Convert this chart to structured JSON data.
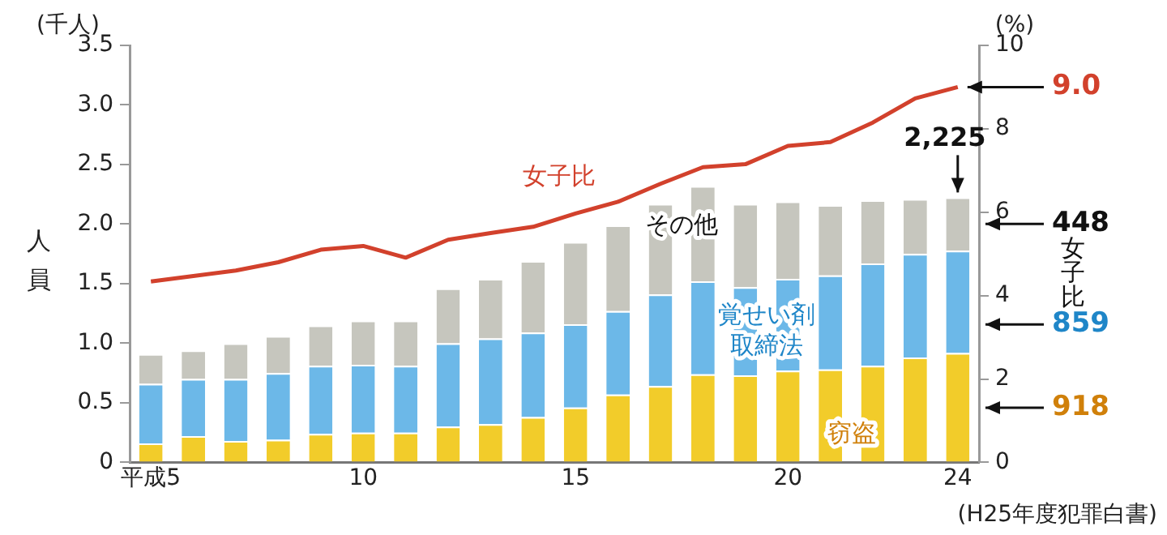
{
  "chart_data": {
    "type": "bar",
    "stacked": true,
    "ylabel": "人員",
    "y2label": "女子比",
    "annotations": [
      "(千人)",
      "(%)",
      "(H25年度犯罪白書)",
      "918",
      "859",
      "448"
    ],
    "categories": [
      "平成5",
      null,
      null,
      null,
      null,
      "10",
      null,
      null,
      null,
      null,
      "15",
      null,
      null,
      null,
      null,
      "20",
      null,
      null,
      null,
      "24"
    ],
    "series": [
      {
        "name": "窃盗",
        "color": "#f2cc2a",
        "values": [
          0.16,
          0.22,
          0.18,
          0.19,
          0.24,
          0.25,
          0.25,
          0.3,
          0.32,
          0.38,
          0.46,
          0.57,
          0.64,
          0.74,
          0.73,
          0.77,
          0.78,
          0.81,
          0.88,
          0.918
        ]
      },
      {
        "name": "覚せい剤取締法",
        "color": "#6cb8e8",
        "values": [
          0.5,
          0.48,
          0.52,
          0.56,
          0.57,
          0.57,
          0.56,
          0.7,
          0.72,
          0.71,
          0.7,
          0.7,
          0.77,
          0.78,
          0.74,
          0.77,
          0.79,
          0.86,
          0.87,
          0.859
        ]
      },
      {
        "name": "その他",
        "color": "#c6c6be",
        "values": [
          0.25,
          0.24,
          0.3,
          0.31,
          0.34,
          0.37,
          0.38,
          0.46,
          0.5,
          0.6,
          0.69,
          0.72,
          0.76,
          0.8,
          0.7,
          0.65,
          0.59,
          0.53,
          0.46,
          0.448
        ]
      },
      {
        "name": "女子比",
        "type": "line",
        "axis": "y2",
        "color": "#d2412c",
        "values": [
          4.34,
          4.47,
          4.6,
          4.8,
          5.1,
          5.19,
          4.91,
          5.34,
          5.5,
          5.65,
          5.97,
          6.25,
          6.68,
          7.08,
          7.15,
          7.59,
          7.68,
          8.15,
          8.73,
          9.0
        ],
        "value_labels": [
          null,
          null,
          null,
          null,
          null,
          null,
          null,
          null,
          null,
          null,
          null,
          null,
          null,
          null,
          null,
          null,
          null,
          null,
          null,
          "9.0"
        ]
      }
    ],
    "totals": [
      null,
      null,
      null,
      null,
      null,
      null,
      null,
      null,
      null,
      null,
      null,
      null,
      null,
      null,
      null,
      null,
      null,
      null,
      null,
      "2,225"
    ],
    "ylim": [
      0,
      3.5
    ],
    "yticks": [
      "0",
      {
        "value": 0.5,
        "label": "0.5"
      },
      {
        "value": 1,
        "label": "1.0"
      },
      {
        "value": 1.5,
        "label": "1.5"
      },
      {
        "value": 2,
        "label": "2.0"
      },
      {
        "value": 2.5,
        "label": "2.5"
      },
      {
        "value": 3,
        "label": "3.0"
      },
      {
        "value": 3.5,
        "label": "3.5"
      }
    ],
    "y2lim": [
      0,
      10
    ],
    "y2ticks": [
      0,
      2,
      4,
      6,
      8,
      10
    ],
    "grid": false,
    "legend": false,
    "marker": "none",
    "line_style": "solid"
  }
}
